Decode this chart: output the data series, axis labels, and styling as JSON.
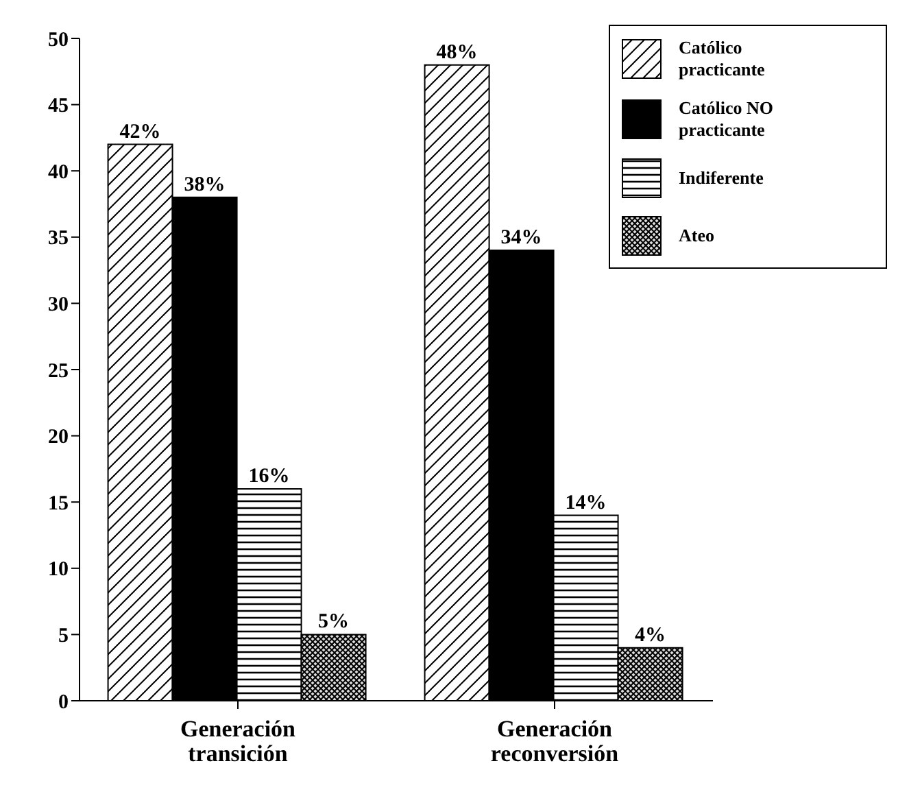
{
  "chart_data": {
    "type": "bar",
    "categories": [
      "Generación transición",
      "Generación reconversión"
    ],
    "series": [
      {
        "name": "Católico practicante",
        "color": "#000000",
        "values": [
          42,
          48
        ],
        "value_labels": [
          "42%",
          "48%"
        ]
      },
      {
        "name": "Católico NO practicante",
        "color": "#000000",
        "values": [
          38,
          34
        ],
        "value_labels": [
          "38%",
          "34%"
        ]
      },
      {
        "name": "Indiferente",
        "color": "#000000",
        "values": [
          16,
          14
        ],
        "value_labels": [
          "16%",
          "14%"
        ]
      },
      {
        "name": "Ateo",
        "color": "#000000",
        "values": [
          5,
          4
        ],
        "value_labels": [
          "5%",
          "4%"
        ]
      }
    ],
    "ylim": [
      0,
      50
    ],
    "yticks": [
      0,
      5,
      10,
      15,
      20,
      25,
      30,
      35,
      40,
      45,
      50
    ],
    "grid": false,
    "legend": "top right"
  }
}
